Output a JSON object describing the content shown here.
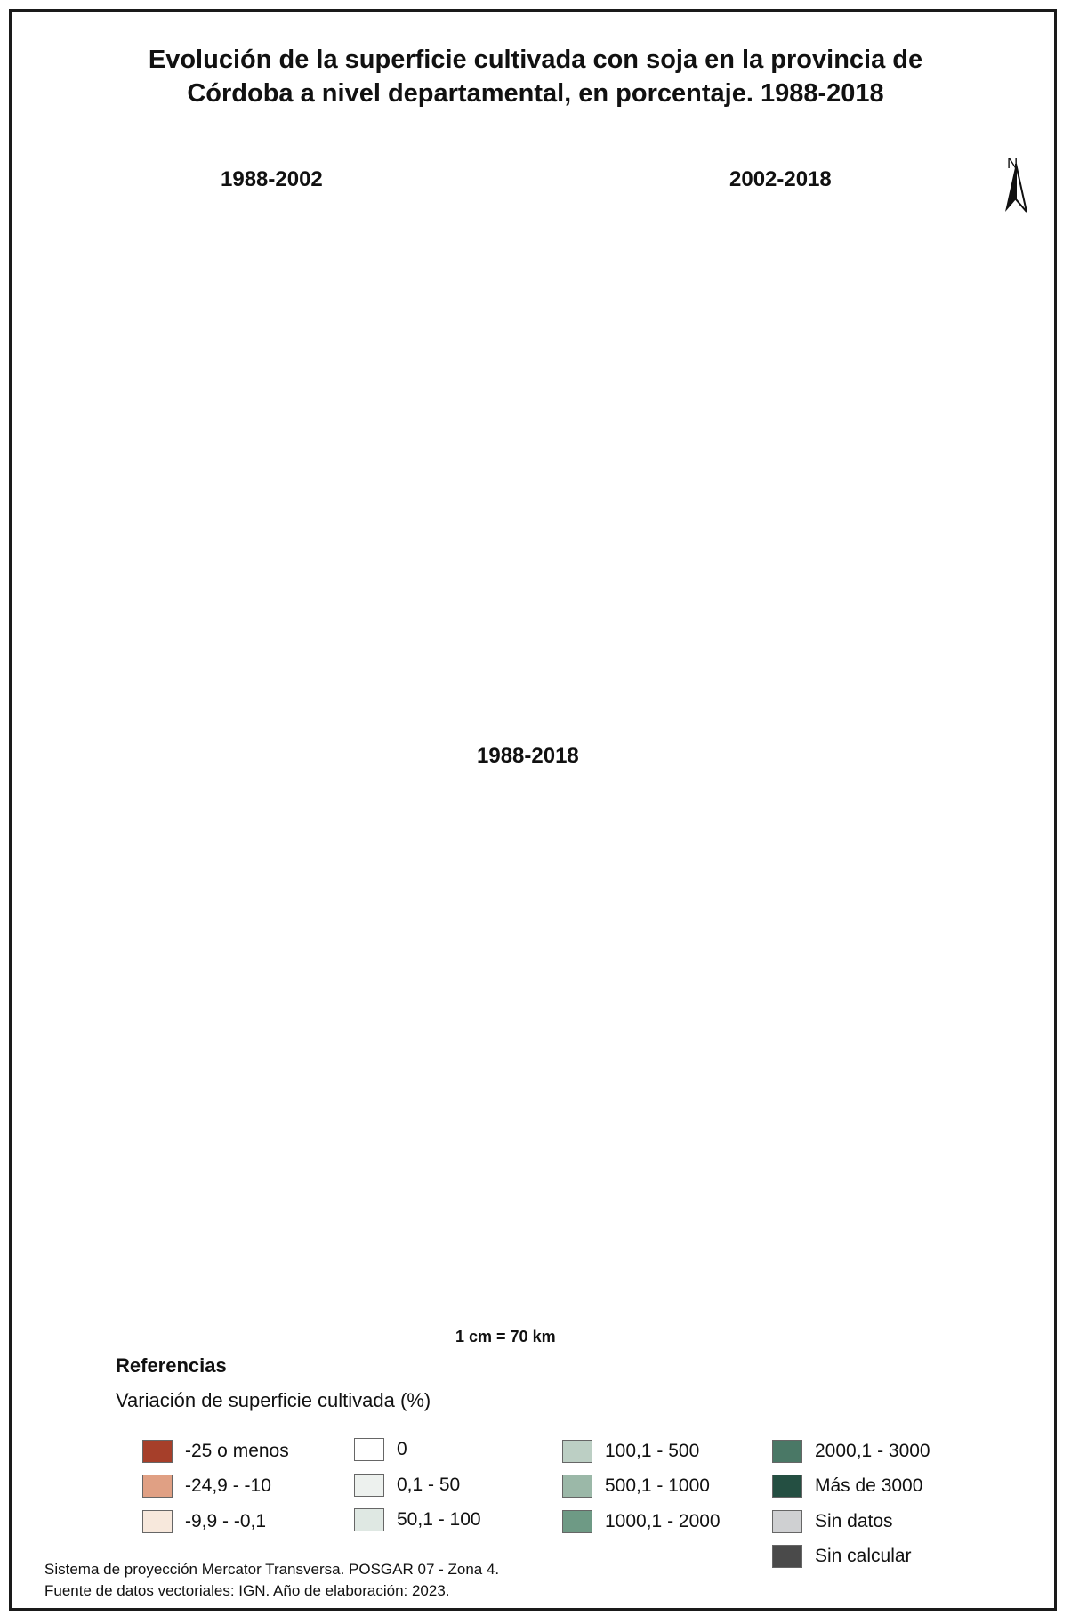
{
  "title_line1": "Evolución de la superficie cultivada con soja en la provincia de",
  "title_line2": "Córdoba a nivel departamental, en porcentaje. 1988-2018",
  "north_label": "N",
  "maps": [
    {
      "title": "1988-2002"
    },
    {
      "title": "2002-2018"
    },
    {
      "title": "1988-2018"
    }
  ],
  "scale_label": "1 cm = 70 km",
  "legend": {
    "title": "Referencias",
    "subtitle": "Variación de superficie cultivada (%)",
    "items": [
      {
        "label": "-25 o menos",
        "color": "#a63f2a"
      },
      {
        "label": "-24,9 - -10",
        "color": "#e0a084"
      },
      {
        "label": "-9,9 - -0,1",
        "color": "#f7e8dc"
      },
      {
        "label": "0",
        "color": "#ffffff"
      },
      {
        "label": "0,1 - 50",
        "color": "#edf1ee"
      },
      {
        "label": "50,1 - 100",
        "color": "#dfe8e3"
      },
      {
        "label": "100,1 - 500",
        "color": "#bccfc4"
      },
      {
        "label": "500,1 - 1000",
        "color": "#9bb8a8"
      },
      {
        "label": "1000,1 - 2000",
        "color": "#6e9a85"
      },
      {
        "label": "2000,1 - 3000",
        "color": "#4a7866"
      },
      {
        "label": "Más de 3000",
        "color": "#244f42"
      },
      {
        "label": "Sin datos",
        "color": "#cfd0d2"
      },
      {
        "label": "Sin calcular",
        "color": "#4a4a4a"
      }
    ]
  },
  "footer_line1": "Sistema de proyección Mercator Transversa. POSGAR 07 - Zona 4.",
  "footer_line2": "Fuente de datos vectoriales: IGN. Año de elaboración: 2023."
}
